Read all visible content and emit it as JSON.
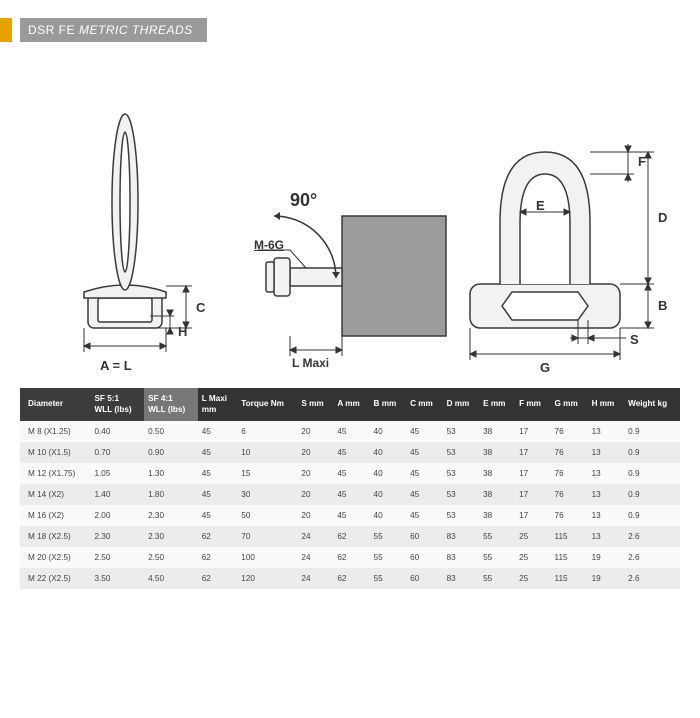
{
  "header": {
    "prefix": "DSR FE",
    "suffix": "METRIC THREADS"
  },
  "diagram": {
    "angle_label": "90°",
    "thread_label": "M-6G",
    "lmaxi_label": "L Maxi",
    "labels": {
      "A": "A  =  L",
      "H": "H",
      "C": "C",
      "B": "B",
      "D": "D",
      "E": "E",
      "F": "F",
      "G": "G",
      "S": "S"
    },
    "colors": {
      "part_fill": "#f2f2f2",
      "part_stroke": "#3a3a3a",
      "block_fill": "#9c9c9c",
      "dim_line": "#333333",
      "arc": "#333333"
    }
  },
  "table": {
    "columns": [
      {
        "key": "dia",
        "h1": "Diameter",
        "h2": "",
        "class": "g1"
      },
      {
        "key": "sf5",
        "h1": "SF 5:1",
        "h2": "WLL (lbs)",
        "class": "g1"
      },
      {
        "key": "sf4",
        "h1": "SF 4:1",
        "h2": "WLL (lbs)",
        "class": "g2"
      },
      {
        "key": "lmaxi",
        "h1": "L Maxi",
        "h2": "mm"
      },
      {
        "key": "torque",
        "h1": "Torque Nm",
        "h2": ""
      },
      {
        "key": "s",
        "h1": "S mm",
        "h2": ""
      },
      {
        "key": "a",
        "h1": "A mm",
        "h2": ""
      },
      {
        "key": "b",
        "h1": "B mm",
        "h2": ""
      },
      {
        "key": "c",
        "h1": "C mm",
        "h2": ""
      },
      {
        "key": "d",
        "h1": "D mm",
        "h2": ""
      },
      {
        "key": "e",
        "h1": "E mm",
        "h2": ""
      },
      {
        "key": "f",
        "h1": "F mm",
        "h2": ""
      },
      {
        "key": "g",
        "h1": "G mm",
        "h2": ""
      },
      {
        "key": "h",
        "h1": "H mm",
        "h2": ""
      },
      {
        "key": "wt",
        "h1": "Weight kg",
        "h2": ""
      }
    ],
    "rows": [
      {
        "dia": "M 8 (X1.25)",
        "sf5": "0.40",
        "sf4": "0.50",
        "lmaxi": "45",
        "torque": "6",
        "s": "20",
        "a": "45",
        "b": "40",
        "c": "45",
        "d": "53",
        "e": "38",
        "f": "17",
        "g": "76",
        "h": "13",
        "wt": "0.9"
      },
      {
        "dia": "M 10 (X1.5)",
        "sf5": "0.70",
        "sf4": "0.90",
        "lmaxi": "45",
        "torque": "10",
        "s": "20",
        "a": "45",
        "b": "40",
        "c": "45",
        "d": "53",
        "e": "38",
        "f": "17",
        "g": "76",
        "h": "13",
        "wt": "0.9"
      },
      {
        "dia": "M 12 (X1.75)",
        "sf5": "1.05",
        "sf4": "1.30",
        "lmaxi": "45",
        "torque": "15",
        "s": "20",
        "a": "45",
        "b": "40",
        "c": "45",
        "d": "53",
        "e": "38",
        "f": "17",
        "g": "76",
        "h": "13",
        "wt": "0.9"
      },
      {
        "dia": "M 14 (X2)",
        "sf5": "1.40",
        "sf4": "1.80",
        "lmaxi": "45",
        "torque": "30",
        "s": "20",
        "a": "45",
        "b": "40",
        "c": "45",
        "d": "53",
        "e": "38",
        "f": "17",
        "g": "76",
        "h": "13",
        "wt": "0.9"
      },
      {
        "dia": "M 16 (X2)",
        "sf5": "2.00",
        "sf4": "2.30",
        "lmaxi": "45",
        "torque": "50",
        "s": "20",
        "a": "45",
        "b": "40",
        "c": "45",
        "d": "53",
        "e": "38",
        "f": "17",
        "g": "76",
        "h": "13",
        "wt": "0.9"
      },
      {
        "dia": "M 18 (X2.5)",
        "sf5": "2.30",
        "sf4": "2.30",
        "lmaxi": "62",
        "torque": "70",
        "s": "24",
        "a": "62",
        "b": "55",
        "c": "60",
        "d": "83",
        "e": "55",
        "f": "25",
        "g": "115",
        "h": "13",
        "wt": "2.6"
      },
      {
        "dia": "M 20 (X2.5)",
        "sf5": "2.50",
        "sf4": "2.50",
        "lmaxi": "62",
        "torque": "100",
        "s": "24",
        "a": "62",
        "b": "55",
        "c": "60",
        "d": "83",
        "e": "55",
        "f": "25",
        "g": "115",
        "h": "19",
        "wt": "2.6"
      },
      {
        "dia": "M 22 (X2.5)",
        "sf5": "3.50",
        "sf4": "4.50",
        "lmaxi": "62",
        "torque": "120",
        "s": "24",
        "a": "62",
        "b": "55",
        "c": "60",
        "d": "83",
        "e": "55",
        "f": "25",
        "g": "115",
        "h": "19",
        "wt": "2.6"
      }
    ]
  }
}
